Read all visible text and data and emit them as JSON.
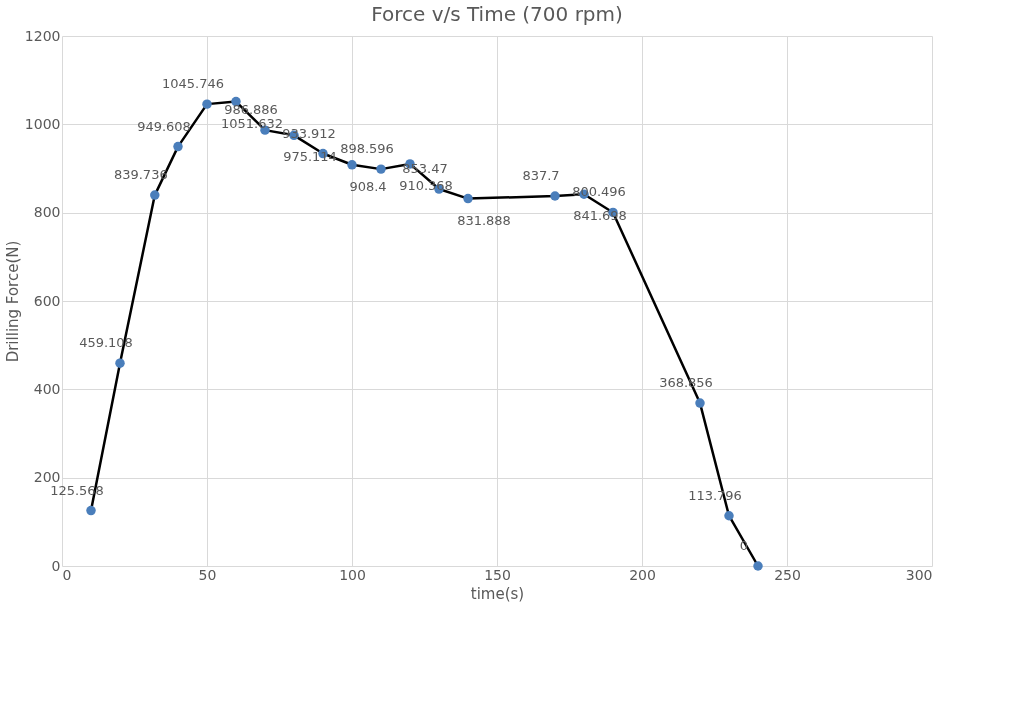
{
  "chart_data": {
    "type": "line",
    "title": "Force v/s Time (700 rpm)",
    "xlabel": "time(s)",
    "ylabel": "Drilling Force(N)",
    "x": [
      10,
      20,
      32,
      40,
      50,
      60,
      70,
      80,
      90,
      100,
      110,
      120,
      130,
      140,
      170,
      180,
      190,
      220,
      230,
      240
    ],
    "series": [
      {
        "color": "#4a7ebb",
        "values": [
          125.568,
          459.108,
          839.736,
          949.608,
          1045.746,
          1051.632,
          986.886,
          975.114,
          933.912,
          908.4,
          898.596,
          910.368,
          853.47,
          831.888,
          837.7,
          841.698,
          800.496,
          368.856,
          113.796,
          0
        ]
      }
    ],
    "xlim": [
      0,
      300
    ],
    "xticks": [
      0,
      50,
      100,
      150,
      200,
      250,
      300
    ],
    "ylim": [
      0,
      1200
    ],
    "yticks": [
      0,
      200,
      400,
      600,
      800,
      1000,
      1200
    ],
    "grid": true,
    "marker": "circle",
    "line_style": "solid",
    "data_labels": true
  }
}
